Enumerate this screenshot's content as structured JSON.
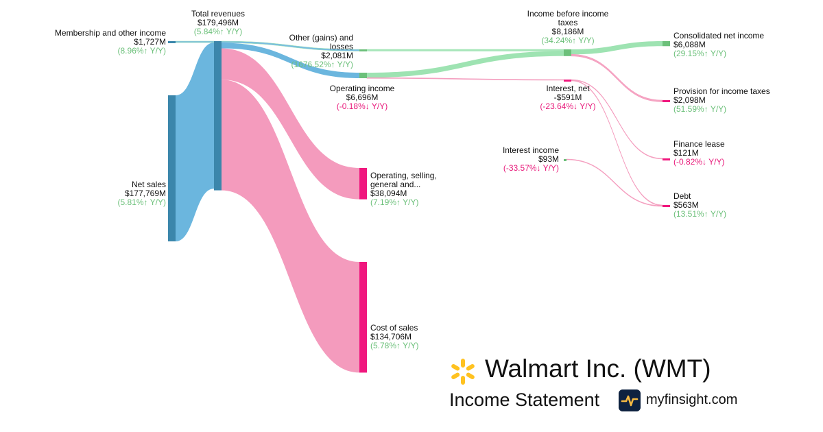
{
  "colors": {
    "inflow": "#6bb6de",
    "inflow_node": "#3b86ab",
    "expense": "#f49bbd",
    "expense_node": "#f0177e",
    "income": "#9ee3b2",
    "income_node": "#6cc07a",
    "positive_text": "#6cc07a",
    "negative_text": "#e8197a",
    "logo_yellow": "#ffc220",
    "badge_bg": "#0e2240"
  },
  "nodes": {
    "membership": {
      "name": "Membership and other income",
      "value": "$1,727M",
      "change": "(8.96%↑ Y/Y)"
    },
    "net_sales": {
      "name": "Net sales",
      "value": "$177,769M",
      "change": "(5.81%↑ Y/Y)"
    },
    "total_revenues": {
      "name": "Total revenues",
      "value": "$179,496M",
      "change": "(5.84%↑ Y/Y)"
    },
    "other_gains": {
      "name_line1": "Other (gains) and",
      "name_line2": "losses",
      "value": "$2,081M",
      "change": "(1676.52%↑ Y/Y)"
    },
    "operating_income": {
      "name": "Operating income",
      "value": "$6,696M",
      "change": "(-0.18%↓ Y/Y)"
    },
    "sga": {
      "name_line1": "Operating, selling,",
      "name_line2": "general and...",
      "value": "$38,094M",
      "change": "(7.19%↑ Y/Y)"
    },
    "cost_of_sales": {
      "name": "Cost of sales",
      "value": "$134,706M",
      "change": "(5.78%↑ Y/Y)"
    },
    "income_before_tax": {
      "name_line1": "Income before income",
      "name_line2": "taxes",
      "value": "$8,186M",
      "change": "(34.24%↑ Y/Y)"
    },
    "interest_net": {
      "name": "Interest, net",
      "value": "-$591M",
      "change": "(-23.64%↓ Y/Y)"
    },
    "interest_income": {
      "name": "Interest income",
      "value": "$93M",
      "change": "(-33.57%↓ Y/Y)"
    },
    "consolidated_net_income": {
      "name": "Consolidated net income",
      "value": "$6,088M",
      "change": "(29.15%↑ Y/Y)"
    },
    "provision_taxes": {
      "name": "Provision for income taxes",
      "value": "$2,098M",
      "change": "(51.59%↑ Y/Y)"
    },
    "finance_lease": {
      "name": "Finance lease",
      "value": "$121M",
      "change": "(-0.82%↓ Y/Y)"
    },
    "debt": {
      "name": "Debt",
      "value": "$563M",
      "change": "(13.51%↑ Y/Y)"
    }
  },
  "chart_data": {
    "type": "sankey",
    "units": "USD millions",
    "flows": [
      {
        "source": "Membership and other income",
        "target": "Total revenues",
        "value": 1727
      },
      {
        "source": "Net sales",
        "target": "Total revenues",
        "value": 177769
      },
      {
        "source": "Total revenues",
        "target": "Other (gains) and losses",
        "value": 2081
      },
      {
        "source": "Total revenues",
        "target": "Operating income",
        "value": 6696
      },
      {
        "source": "Total revenues",
        "target": "Operating, selling, general and...",
        "value": 38094
      },
      {
        "source": "Total revenues",
        "target": "Cost of sales",
        "value": 134706
      },
      {
        "source": "Other (gains) and losses",
        "target": "Income before income taxes",
        "value": 2081
      },
      {
        "source": "Operating income",
        "target": "Income before income taxes",
        "value": 6105
      },
      {
        "source": "Operating income",
        "target": "Interest, net",
        "value": 591
      },
      {
        "source": "Income before income taxes",
        "target": "Consolidated net income",
        "value": 6088
      },
      {
        "source": "Income before income taxes",
        "target": "Provision for income taxes",
        "value": 2098
      },
      {
        "source": "Interest, net",
        "target": "Finance lease",
        "value": 121
      },
      {
        "source": "Interest, net",
        "target": "Debt",
        "value": 470
      },
      {
        "source": "Interest income",
        "target": "Debt",
        "value": 93
      }
    ]
  },
  "branding": {
    "company": "Walmart Inc. (WMT)",
    "statement": "Income Statement",
    "site": "myfinsight.com"
  }
}
